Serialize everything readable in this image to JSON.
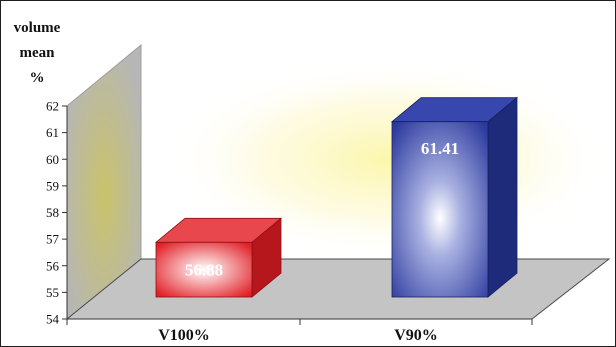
{
  "chart_data": {
    "type": "bar",
    "categories": [
      "V100%",
      "V90%"
    ],
    "values": [
      56.88,
      61.41
    ],
    "value_labels": [
      "56.88",
      "61.41"
    ],
    "title": "",
    "xlabel": "",
    "ylabel_lines": [
      "volume",
      "mean",
      "%"
    ],
    "ylim": [
      54,
      62
    ],
    "yticks": [
      "54",
      "55",
      "56",
      "57",
      "58",
      "59",
      "60",
      "61",
      "62"
    ],
    "colors": [
      "#e01f26",
      "#2b3a9e"
    ],
    "style": "3d",
    "grid": false,
    "legend": "none"
  }
}
